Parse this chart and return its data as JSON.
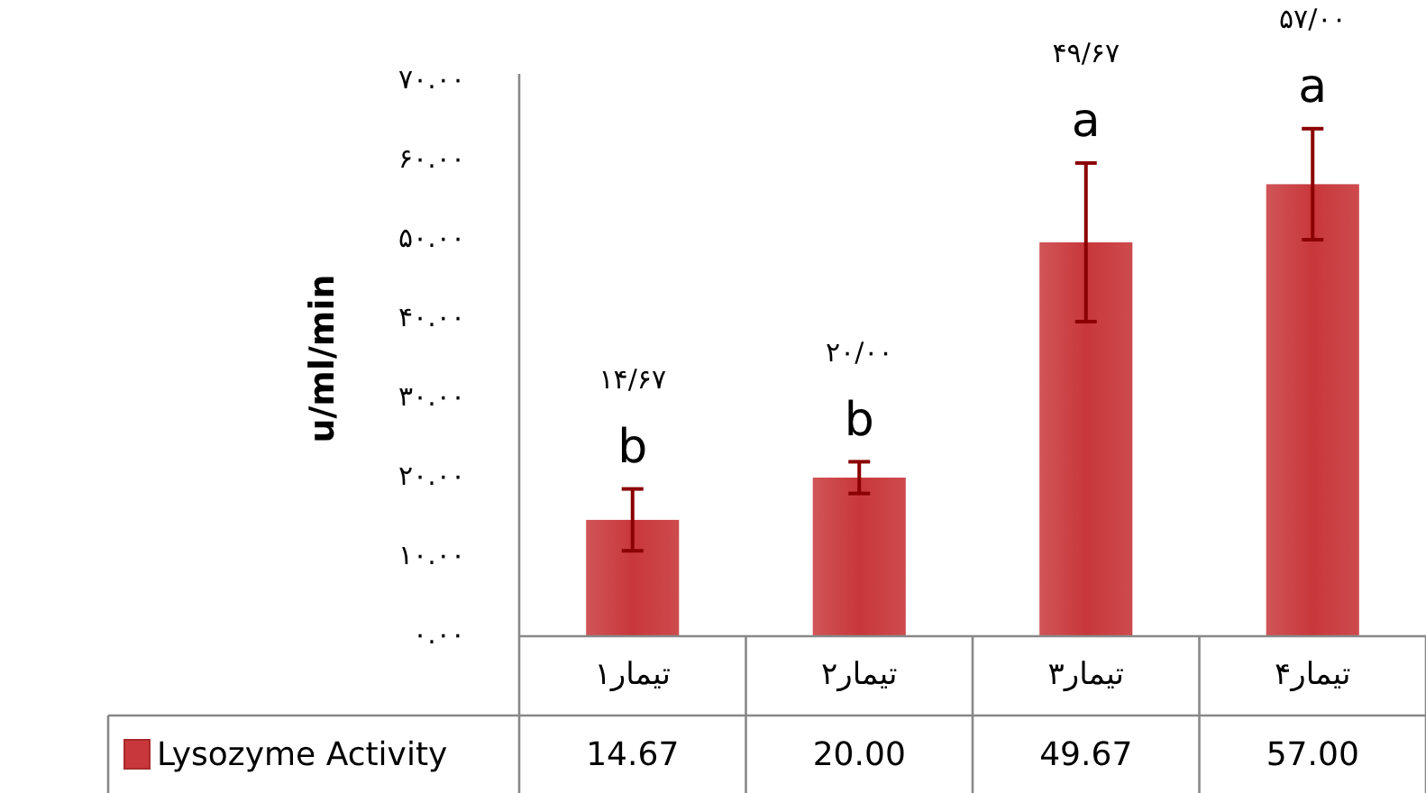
{
  "chart_data": {
    "type": "bar",
    "ylabel": "u/ml/min",
    "categories": [
      "تیمار۱",
      "تیمار۲",
      "تیمار۳",
      "تیمار۴"
    ],
    "series": [
      {
        "name": "Lysozyme Activity",
        "color": "#c8373a",
        "values": [
          14.67,
          20.0,
          49.67,
          57.0
        ],
        "errors": [
          3.9,
          2,
          10,
          7
        ],
        "value_labels": [
          "14.67",
          "20.00",
          "49.67",
          "57.00"
        ]
      }
    ],
    "ylim": [
      0,
      70
    ],
    "yticks": [
      {
        "value": 0,
        "label": "۰.۰۰"
      },
      {
        "value": 10,
        "label": "۱۰.۰۰"
      },
      {
        "value": 20,
        "label": "۲۰.۰۰"
      },
      {
        "value": 30,
        "label": "۳۰.۰۰"
      },
      {
        "value": 40,
        "label": "۴۰.۰۰"
      },
      {
        "value": 50,
        "label": "۵۰.۰۰"
      },
      {
        "value": 60,
        "label": "۶۰.۰۰"
      },
      {
        "value": 70,
        "label": "۷۰.۰۰"
      }
    ],
    "annotations": [
      "b",
      "b",
      "a",
      "a",
      "۱۴/۶۷",
      "۲۰/۰۰",
      "۴۹/۶۷",
      "۵۷/۰۰"
    ],
    "legend": "bottom",
    "grid": false
  }
}
